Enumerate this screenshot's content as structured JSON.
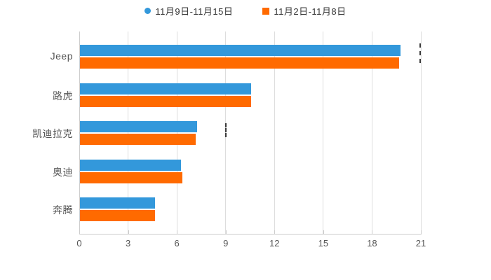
{
  "legend": {
    "items": [
      {
        "label": "11月9日-11月15日",
        "color": "#3398DB",
        "shape": "circle"
      },
      {
        "label": "11月2日-11月8日",
        "color": "#FF6A00",
        "shape": "square"
      }
    ]
  },
  "chart_data": {
    "type": "bar",
    "orientation": "horizontal",
    "title": "",
    "xlabel": "",
    "ylabel": "",
    "categories": [
      "Jeep",
      "路虎",
      "凯迪拉克",
      "奥迪",
      "奔腾"
    ],
    "series": [
      {
        "name": "11月9日-11月15日",
        "color": "#3398DB",
        "values": [
          19.7,
          10.5,
          7.2,
          6.2,
          4.6
        ]
      },
      {
        "name": "11月2日-11月8日",
        "color": "#FF6A00",
        "values": [
          19.6,
          10.5,
          7.1,
          6.3,
          4.6
        ]
      }
    ],
    "xlim": [
      0,
      21
    ],
    "xticks": [
      0,
      3,
      6,
      9,
      12,
      15,
      18,
      21
    ],
    "grid": true,
    "legend_position": "top",
    "colors": {
      "axis": "#cccccc",
      "gridline": "#dddddd",
      "tick_label": "#555555",
      "category_label": "#555555",
      "legend_text": "#333333"
    }
  }
}
